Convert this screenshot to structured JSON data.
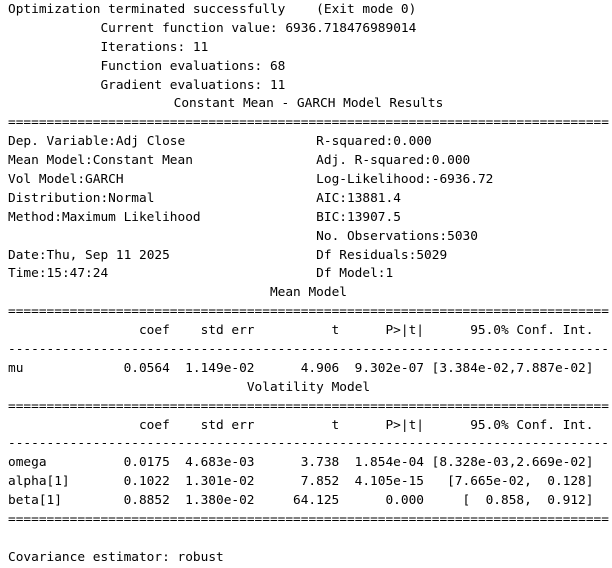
{
  "optimizer": {
    "status": "Optimization terminated successfully",
    "exit_note": "(Exit mode 0)",
    "details": [
      {
        "label": "Current function value:",
        "value": "6936.718476989014"
      },
      {
        "label": "Iterations:",
        "value": "11"
      },
      {
        "label": "Function evaluations:",
        "value": "68"
      },
      {
        "label": "Gradient evaluations:",
        "value": "11"
      }
    ]
  },
  "title": "Constant Mean - GARCH Model Results",
  "rules": {
    "double": "==============================================================================",
    "dash": "------------------------------------------------------------------------------"
  },
  "info": {
    "rows": [
      {
        "ll": "Dep. Variable:",
        "lv": "Adj Close",
        "rl": "R-squared:",
        "rv": "0.000"
      },
      {
        "ll": "Mean Model:",
        "lv": "Constant Mean",
        "rl": "Adj. R-squared:",
        "rv": "0.000"
      },
      {
        "ll": "Vol Model:",
        "lv": "GARCH",
        "rl": "Log-Likelihood:",
        "rv": "-6936.72"
      },
      {
        "ll": "Distribution:",
        "lv": "Normal",
        "rl": "AIC:",
        "rv": "13881.4"
      },
      {
        "ll": "Method:",
        "lv": "Maximum Likelihood",
        "rl": "BIC:",
        "rv": "13907.5"
      },
      {
        "ll": "",
        "lv": "",
        "rl": "No. Observations:",
        "rv": "5030"
      },
      {
        "ll": "Date:",
        "lv": "Thu, Sep 11 2025",
        "rl": "Df Residuals:",
        "rv": "5029"
      },
      {
        "ll": "Time:",
        "lv": "15:47:24",
        "rl": "Df Model:",
        "rv": "1"
      }
    ]
  },
  "mean_model": {
    "section_title": "Mean Model",
    "headers": [
      "",
      "coef",
      "std err",
      "t",
      "P>|t|",
      "95.0% Conf. Int."
    ],
    "rows": [
      [
        "mu",
        "0.0564",
        "1.149e-02",
        "4.906",
        "9.302e-07",
        "[3.384e-02,7.887e-02]"
      ]
    ]
  },
  "volatility_model": {
    "section_title": "Volatility Model",
    "headers": [
      "",
      "coef",
      "std err",
      "t",
      "P>|t|",
      "95.0% Conf. Int."
    ],
    "rows": [
      [
        "omega",
        "0.0175",
        "4.683e-03",
        "3.738",
        "1.854e-04",
        "[8.328e-03,2.669e-02]"
      ],
      [
        "alpha[1]",
        "0.1022",
        "1.301e-02",
        "7.852",
        "4.105e-15",
        "[7.665e-02,  0.128]"
      ],
      [
        "beta[1]",
        "0.8852",
        "1.380e-02",
        "64.125",
        "0.000",
        "[  0.858,  0.912]"
      ]
    ]
  },
  "footer": {
    "label": "Covariance estimator:",
    "value": "robust"
  }
}
